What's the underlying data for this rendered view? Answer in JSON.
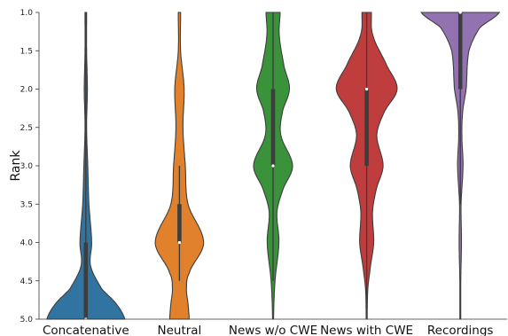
{
  "chart_data": {
    "type": "violin",
    "title": "",
    "xlabel": "",
    "ylabel": "Rank",
    "ylim": [
      5.0,
      1.0
    ],
    "y_inverted": true,
    "yticks": [
      "1.0",
      "1.5",
      "2.0",
      "2.5",
      "3.0",
      "3.5",
      "4.0",
      "4.5",
      "5.0"
    ],
    "grid": false,
    "legend": "none",
    "categories": [
      "Concatenative",
      "Neutral",
      "News w/o CWE",
      "News with CWE",
      "Recordings"
    ],
    "series": [
      {
        "color": "#3274a1",
        "box": {
          "q1": 4.0,
          "median": 5.0,
          "q3": 5.0,
          "whisker_low": 1.0,
          "whisker_high": 5.0
        },
        "density": [
          [
            1.0,
            0.02
          ],
          [
            1.5,
            0.02
          ],
          [
            2.0,
            0.04
          ],
          [
            2.5,
            0.02
          ],
          [
            3.0,
            0.05
          ],
          [
            3.5,
            0.08
          ],
          [
            4.0,
            0.15
          ],
          [
            4.3,
            0.12
          ],
          [
            4.6,
            0.4
          ],
          [
            4.8,
            0.78
          ],
          [
            5.0,
            1.0
          ]
        ]
      },
      {
        "color": "#e1812c",
        "box": {
          "q1": 3.5,
          "median": 4.0,
          "q3": 4.0,
          "whisker_low": 3.0,
          "whisker_high": 4.5
        },
        "density": [
          [
            1.0,
            0.03
          ],
          [
            1.5,
            0.03
          ],
          [
            2.0,
            0.12
          ],
          [
            2.5,
            0.09
          ],
          [
            3.0,
            0.15
          ],
          [
            3.5,
            0.22
          ],
          [
            4.0,
            0.62
          ],
          [
            4.4,
            0.25
          ],
          [
            4.6,
            0.18
          ],
          [
            4.8,
            0.22
          ],
          [
            5.0,
            0.25
          ]
        ]
      },
      {
        "color": "#3a923a",
        "box": {
          "q1": 2.0,
          "median": 3.0,
          "q3": 3.0,
          "whisker_low": 1.0,
          "whisker_high": 4.5
        },
        "density": [
          [
            1.0,
            0.18
          ],
          [
            1.3,
            0.16
          ],
          [
            1.7,
            0.28
          ],
          [
            2.0,
            0.42
          ],
          [
            2.3,
            0.24
          ],
          [
            2.6,
            0.2
          ],
          [
            3.0,
            0.5
          ],
          [
            3.3,
            0.26
          ],
          [
            3.6,
            0.1
          ],
          [
            4.0,
            0.15
          ],
          [
            4.5,
            0.05
          ],
          [
            5.0,
            0.01
          ]
        ]
      },
      {
        "color": "#c03d3e",
        "box": {
          "q1": 2.0,
          "median": 2.0,
          "q3": 3.0,
          "whisker_low": 1.0,
          "whisker_high": 5.0
        },
        "density": [
          [
            1.0,
            0.12
          ],
          [
            1.3,
            0.16
          ],
          [
            1.7,
            0.52
          ],
          [
            2.0,
            0.78
          ],
          [
            2.3,
            0.45
          ],
          [
            2.6,
            0.26
          ],
          [
            3.0,
            0.42
          ],
          [
            3.3,
            0.25
          ],
          [
            3.6,
            0.15
          ],
          [
            4.0,
            0.18
          ],
          [
            4.3,
            0.1
          ],
          [
            4.6,
            0.03
          ],
          [
            5.0,
            0.01
          ]
        ]
      },
      {
        "color": "#9372b2",
        "box": {
          "q1": 1.0,
          "median": 1.0,
          "q3": 2.0,
          "whisker_low": 1.0,
          "whisker_high": 3.5
        },
        "density": [
          [
            1.0,
            1.0
          ],
          [
            1.2,
            0.5
          ],
          [
            1.5,
            0.22
          ],
          [
            2.0,
            0.15
          ],
          [
            2.3,
            0.06
          ],
          [
            2.6,
            0.04
          ],
          [
            3.0,
            0.07
          ],
          [
            3.5,
            0.02
          ],
          [
            4.0,
            0.03
          ],
          [
            4.5,
            0.01
          ],
          [
            5.0,
            0.01
          ]
        ]
      }
    ]
  }
}
